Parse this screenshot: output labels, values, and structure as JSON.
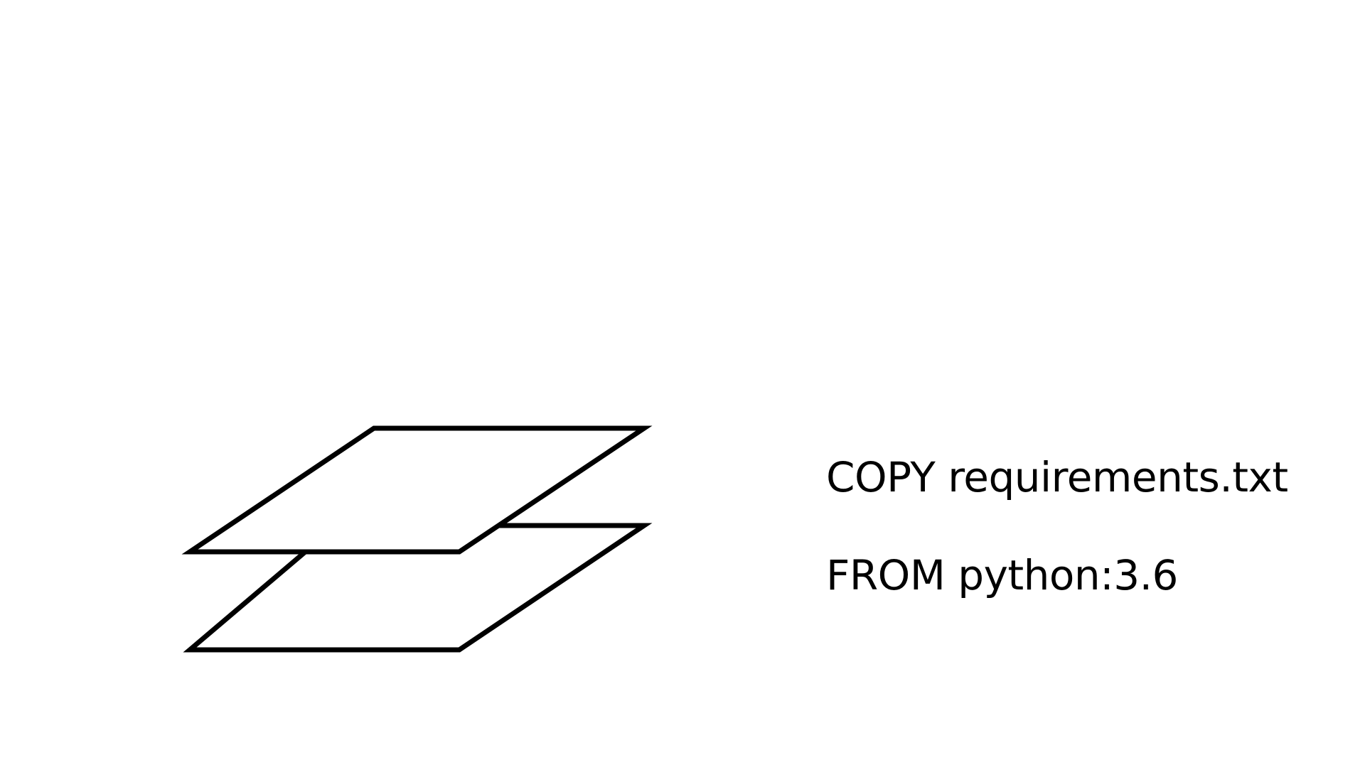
{
  "layers": [
    {
      "id": "copy",
      "label": "COPY requirements.txt"
    },
    {
      "id": "from",
      "label": "FROM python:3.6"
    }
  ],
  "colors": {
    "stroke": "#000000",
    "fill": "#ffffff",
    "text": "#000000",
    "background": "#ffffff"
  }
}
